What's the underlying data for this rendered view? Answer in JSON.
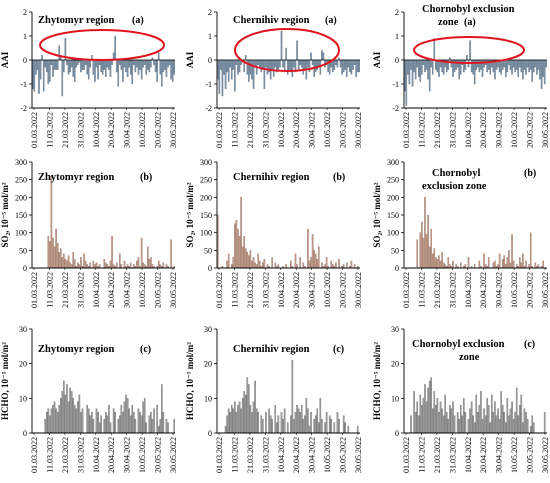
{
  "x_tick_labels": [
    "01.03.2022",
    "11.03.2022",
    "21.03.2022",
    "31.03.2022",
    "10.04.2022",
    "20.04.2022",
    "30.04.2022",
    "10.05.2022",
    "20.05.2022",
    "30.05.2022"
  ],
  "colors": {
    "aai": "#7f95a8",
    "aai_edge": "#566b80",
    "so2": "#c9a392",
    "so2_edge": "#8c6656",
    "hcho": "#a6a6a6",
    "hcho_edge": "#606060",
    "ellipse": "#e0141e"
  },
  "chart_data": [
    {
      "type": "bar",
      "title": "Zhytomyr region",
      "tag": "(a)",
      "ylabel": "AAI",
      "ylim": [
        -2,
        2
      ],
      "yticks": [
        -2,
        -1,
        0,
        1,
        2
      ],
      "y_tick_labels": [
        "-2",
        "-1",
        "0",
        "1",
        "2"
      ],
      "highlight_ellipse": true,
      "values": [
        -1.2,
        -1.3,
        -0.6,
        -0.4,
        -1.4,
        -0.8,
        0.2,
        -1.3,
        -0.3,
        -0.5,
        -1.0,
        -0.9,
        -0.2,
        -0.7,
        -0.4,
        -0.4,
        -0.4,
        0.6,
        0.2,
        -1.5,
        -0.5,
        0.9,
        -0.2,
        -0.6,
        -0.5,
        -0.3,
        -0.7,
        -0.9,
        -0.3,
        -0.2,
        -0.1,
        -0.5,
        -0.4,
        -0.4,
        -0.2,
        -0.6,
        -0.8,
        -0.3,
        0.2,
        -0.6,
        -0.9,
        -0.3,
        -0.8,
        -0.2,
        -0.5,
        -0.6,
        -0.4,
        -0.7,
        -0.3,
        -0.4,
        -0.7,
        -0.2,
        0.3,
        1.0,
        -0.5,
        -1.1,
        -0.2,
        -0.4,
        -0.9,
        -0.3,
        -0.5,
        -0.7,
        -0.3,
        -0.6,
        -1.0,
        -0.2,
        -0.5,
        -0.3,
        -0.6,
        -0.4,
        -0.8,
        -0.3,
        -0.2,
        -0.6,
        -0.4,
        -0.5,
        -0.3,
        0.1,
        -0.2,
        -0.5,
        -0.9,
        0.3,
        -0.6,
        -1.1,
        -0.5,
        -0.4,
        -0.7,
        -0.3,
        -0.2,
        -0.8,
        -0.9,
        -0.6
      ]
    },
    {
      "type": "bar",
      "title": "Chernihiv region",
      "tag": "(a)",
      "ylabel": "AAI",
      "ylim": [
        -2,
        2
      ],
      "yticks": [
        -2,
        -1,
        0,
        1,
        2
      ],
      "y_tick_labels": [
        "-2",
        "-1",
        "0",
        "1",
        "2"
      ],
      "highlight_ellipse": true,
      "values": [
        -0.8,
        -1.4,
        -0.4,
        -1.5,
        -0.6,
        -1.2,
        -0.5,
        -0.9,
        -0.3,
        -0.8,
        -0.4,
        -1.3,
        -0.2,
        -0.6,
        -0.5,
        -0.2,
        -0.1,
        -0.5,
        0.2,
        -0.6,
        -0.9,
        -0.6,
        -0.8,
        -1.2,
        -0.3,
        -0.6,
        -0.2,
        -0.3,
        -0.5,
        -0.4,
        -1.2,
        -0.3,
        -0.6,
        -0.5,
        -0.8,
        -0.4,
        -0.7,
        -0.3,
        -0.5,
        -0.4,
        -0.3,
        1.2,
        -0.3,
        -0.5,
        0.5,
        -0.6,
        -0.4,
        -0.5,
        -0.7,
        -0.3,
        -0.5,
        0.8,
        -0.4,
        -0.2,
        -0.3,
        -0.6,
        -0.4,
        -0.8,
        -0.3,
        -0.5,
        0.3,
        -0.2,
        -0.7,
        -0.5,
        -0.4,
        -0.3,
        -0.6,
        0.4,
        0.3,
        -0.3,
        -0.2,
        -0.5,
        -0.6,
        -0.3,
        -0.5,
        -0.4,
        -0.2,
        -0.3,
        0.1,
        -0.3,
        -0.6,
        -0.5,
        -0.4,
        -0.7,
        -0.3,
        -0.5,
        -0.6,
        -0.4,
        -0.2,
        -0.7,
        -0.5,
        -0.5
      ]
    },
    {
      "type": "bar",
      "title": "Chornobyl exclusion zone",
      "tag": "(a)",
      "ylabel": "AAI",
      "ylim": [
        -2,
        2
      ],
      "yticks": [
        -2,
        -1,
        0,
        1,
        2
      ],
      "y_tick_labels": [
        "-2",
        "-1",
        "0",
        "1",
        "2"
      ],
      "highlight_ellipse": true,
      "values": [
        -1.3,
        -1.9,
        -0.6,
        -1.0,
        -0.4,
        -1.1,
        -0.5,
        -0.8,
        -0.3,
        -0.7,
        -0.9,
        -0.6,
        -0.2,
        -0.5,
        -0.4,
        -0.8,
        -1.3,
        -0.3,
        -0.6,
        0.9,
        -0.4,
        -0.5,
        -0.7,
        -0.3,
        -0.5,
        -0.6,
        -0.3,
        -0.5,
        -0.4,
        0.1,
        -0.3,
        -0.7,
        -0.5,
        -0.4,
        -0.3,
        -0.8,
        -0.6,
        -0.2,
        -0.5,
        -0.4,
        0.2,
        -0.3,
        0.8,
        -0.5,
        -0.6,
        -1.0,
        -0.4,
        -0.3,
        -0.5,
        -0.4,
        -0.7,
        -0.3,
        -0.2,
        -0.5,
        -0.4,
        -0.6,
        -0.3,
        -0.5,
        -0.8,
        -0.4,
        -0.3,
        -0.5,
        -0.6,
        -0.4,
        -0.3,
        -0.7,
        -0.5,
        -0.2,
        -0.4,
        -0.6,
        -0.3,
        -0.5,
        -0.4,
        -0.7,
        -0.3,
        -0.5,
        -0.8,
        -0.4,
        -0.6,
        -0.3,
        -0.5,
        -0.4,
        -0.9,
        -0.5,
        -0.3,
        -0.6,
        -0.4,
        -0.8,
        -1.2,
        -0.7,
        -1.0,
        -0.3
      ]
    },
    {
      "type": "bar",
      "title": "Zhytomyr region",
      "tag": "(b)",
      "ylabel": "SO₂, 10⁻⁵ mol/m²",
      "ylim": [
        0,
        300
      ],
      "yticks": [
        0,
        50,
        100,
        150,
        200,
        250,
        300
      ],
      "y_tick_labels": [
        "0",
        "50",
        "100",
        "150",
        "200",
        "250",
        "300"
      ],
      "values": [
        0,
        0,
        0,
        0,
        0,
        0,
        0,
        0,
        0,
        0,
        90,
        75,
        260,
        85,
        60,
        110,
        70,
        45,
        55,
        30,
        40,
        25,
        20,
        35,
        15,
        10,
        45,
        25,
        5,
        15,
        10,
        30,
        5,
        40,
        20,
        10,
        5,
        15,
        0,
        20,
        10,
        15,
        5,
        10,
        0,
        0,
        25,
        15,
        10,
        5,
        20,
        90,
        10,
        5,
        15,
        0,
        40,
        10,
        0,
        20,
        5,
        10,
        5,
        15,
        0,
        10,
        5,
        20,
        30,
        5,
        85,
        15,
        10,
        5,
        60,
        25,
        30,
        10,
        5,
        0,
        5,
        20,
        10,
        5,
        15,
        0,
        10,
        5,
        0,
        80,
        0,
        5
      ]
    },
    {
      "type": "bar",
      "title": "Chernihiv region",
      "tag": "(b)",
      "ylabel": "SO₂, 10⁻⁵ mol/m²",
      "ylim": [
        0,
        300
      ],
      "yticks": [
        0,
        50,
        100,
        150,
        200,
        250,
        300
      ],
      "y_tick_labels": [
        "0",
        "50",
        "100",
        "150",
        "200",
        "250",
        "300"
      ],
      "values": [
        150,
        0,
        0,
        5,
        0,
        0,
        20,
        40,
        0,
        10,
        30,
        125,
        135,
        110,
        90,
        200,
        60,
        90,
        55,
        45,
        35,
        50,
        20,
        30,
        15,
        10,
        40,
        20,
        5,
        15,
        25,
        0,
        10,
        5,
        0,
        30,
        0,
        15,
        5,
        10,
        0,
        0,
        5,
        0,
        10,
        0,
        0,
        20,
        5,
        0,
        40,
        10,
        0,
        30,
        0,
        15,
        5,
        0,
        110,
        20,
        30,
        95,
        50,
        40,
        25,
        60,
        0,
        15,
        5,
        10,
        30,
        5,
        0,
        20,
        10,
        5,
        15,
        0,
        25,
        0,
        5,
        10,
        0,
        15,
        0,
        5,
        20,
        0,
        10,
        0,
        5,
        0
      ]
    },
    {
      "type": "bar",
      "title": "Chornobyl exclusion zone",
      "tag": "(b)",
      "ylabel": "SO₂, 10⁻⁵ mol/m²",
      "ylim": [
        0,
        300
      ],
      "yticks": [
        0,
        50,
        100,
        150,
        200,
        250,
        300
      ],
      "y_tick_labels": [
        "0",
        "50",
        "100",
        "150",
        "200",
        "250",
        "300"
      ],
      "values": [
        0,
        0,
        0,
        0,
        0,
        0,
        0,
        0,
        80,
        0,
        100,
        130,
        85,
        200,
        95,
        150,
        60,
        110,
        40,
        55,
        30,
        25,
        35,
        20,
        45,
        15,
        10,
        5,
        30,
        10,
        5,
        20,
        0,
        10,
        5,
        0,
        15,
        0,
        5,
        10,
        0,
        30,
        0,
        5,
        0,
        10,
        0,
        0,
        20,
        5,
        0,
        40,
        10,
        5,
        30,
        0,
        0,
        15,
        20,
        5,
        10,
        40,
        0,
        25,
        35,
        10,
        30,
        50,
        15,
        95,
        20,
        0,
        10,
        5,
        30,
        15,
        40,
        5,
        20,
        0,
        10,
        100,
        5,
        0,
        15,
        5,
        10,
        0,
        5,
        20,
        0,
        0
      ]
    },
    {
      "type": "bar",
      "title": "Zhytomyr region",
      "tag": "(c)",
      "ylabel": "HCHO, 10⁻⁵ mol/m²",
      "ylim": [
        0,
        30
      ],
      "yticks": [
        0,
        10,
        20,
        30
      ],
      "y_tick_labels": [
        "0",
        "10",
        "20",
        "30"
      ],
      "values": [
        0,
        0,
        0,
        0,
        0,
        0,
        0,
        0,
        4,
        6,
        7,
        5,
        7,
        8,
        9,
        7,
        6,
        8,
        10,
        12,
        15,
        11,
        14,
        9,
        13,
        12,
        10,
        8,
        7,
        9,
        11,
        6,
        7,
        0,
        0,
        8,
        7,
        5,
        6,
        4,
        0,
        7,
        6,
        3,
        5,
        0,
        4,
        6,
        5,
        8,
        3,
        0,
        7,
        6,
        0,
        4,
        5,
        8,
        6,
        9,
        11,
        10,
        7,
        5,
        8,
        6,
        4,
        0,
        7,
        6,
        5,
        9,
        10,
        3,
        0,
        5,
        6,
        4,
        7,
        0,
        8,
        2,
        4,
        14,
        6,
        0,
        4,
        3,
        0,
        0,
        0,
        4
      ]
    },
    {
      "type": "bar",
      "title": "Chernihiv region",
      "tag": "(c)",
      "ylabel": "HCHO, 10⁻⁵ mol/m²",
      "ylim": [
        0,
        30
      ],
      "yticks": [
        0,
        10,
        20,
        30
      ],
      "y_tick_labels": [
        "0",
        "10",
        "20",
        "30"
      ],
      "values": [
        0,
        0,
        0,
        0,
        0,
        2,
        5,
        7,
        6,
        8,
        7,
        9,
        6,
        8,
        9,
        7,
        10,
        12,
        11,
        16,
        14,
        8,
        6,
        9,
        15,
        7,
        6,
        0,
        5,
        4,
        0,
        6,
        0,
        7,
        5,
        4,
        0,
        8,
        3,
        5,
        0,
        6,
        4,
        7,
        0,
        3,
        0,
        5,
        21,
        4,
        6,
        8,
        7,
        6,
        8,
        4,
        5,
        10,
        7,
        2,
        6,
        0,
        4,
        5,
        7,
        3,
        10,
        4,
        0,
        3,
        6,
        0,
        5,
        4,
        0,
        3,
        0,
        6,
        4,
        0,
        0,
        5,
        3,
        0,
        2,
        0,
        0,
        0,
        0,
        0,
        2,
        0
      ]
    },
    {
      "type": "bar",
      "title": "Chornobyl exclusion zone",
      "tag": "(c)",
      "ylabel": "HCHO, 10⁻⁵ mol/m²",
      "ylim": [
        0,
        30
      ],
      "yticks": [
        0,
        10,
        20,
        30
      ],
      "y_tick_labels": [
        "0",
        "10",
        "20",
        "30"
      ],
      "values": [
        0,
        0,
        0,
        0,
        5,
        0,
        12,
        6,
        9,
        5,
        11,
        8,
        10,
        14,
        9,
        13,
        15,
        16,
        7,
        12,
        8,
        10,
        6,
        9,
        7,
        5,
        11,
        6,
        4,
        8,
        7,
        9,
        5,
        0,
        6,
        4,
        8,
        5,
        10,
        6,
        0,
        4,
        7,
        9,
        5,
        3,
        11,
        6,
        8,
        12,
        4,
        7,
        5,
        10,
        8,
        3,
        11,
        6,
        9,
        5,
        7,
        4,
        12,
        8,
        6,
        3,
        10,
        5,
        7,
        9,
        4,
        6,
        13,
        5,
        8,
        11,
        3,
        7,
        6,
        4,
        0,
        2,
        5,
        3,
        0,
        0,
        0,
        0,
        0,
        0,
        6,
        0
      ]
    }
  ]
}
